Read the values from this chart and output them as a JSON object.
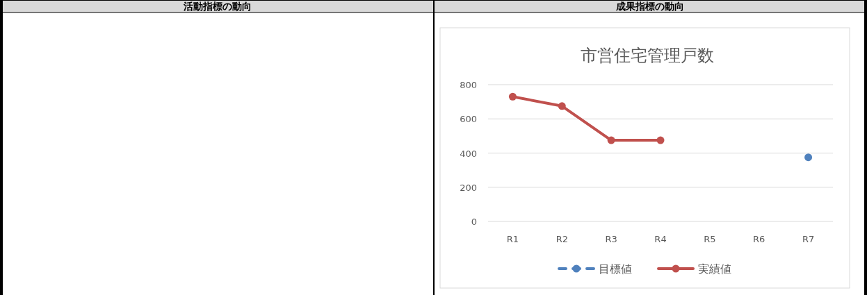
{
  "chart_data": {
    "type": "line",
    "title": "市営住宅管理戸数",
    "annotations": [
      "活動指標の動向",
      "成果指標の動向"
    ],
    "categories": [
      "R1",
      "R2",
      "R3",
      "R4",
      "R5",
      "R6",
      "R7"
    ],
    "series": [
      {
        "name": "目標値",
        "color": "#4f81bd",
        "line_style": "dashed",
        "values": [
          null,
          null,
          null,
          null,
          null,
          null,
          375
        ]
      },
      {
        "name": "実績値",
        "color": "#c0504d",
        "line_style": "solid",
        "values": [
          730,
          675,
          475,
          475,
          null,
          null,
          null
        ]
      }
    ],
    "ylim": [
      0,
      800
    ],
    "yticks": [
      0,
      200,
      400,
      600,
      800
    ],
    "grid": "y",
    "legend": "bottom",
    "marker": "circle"
  }
}
